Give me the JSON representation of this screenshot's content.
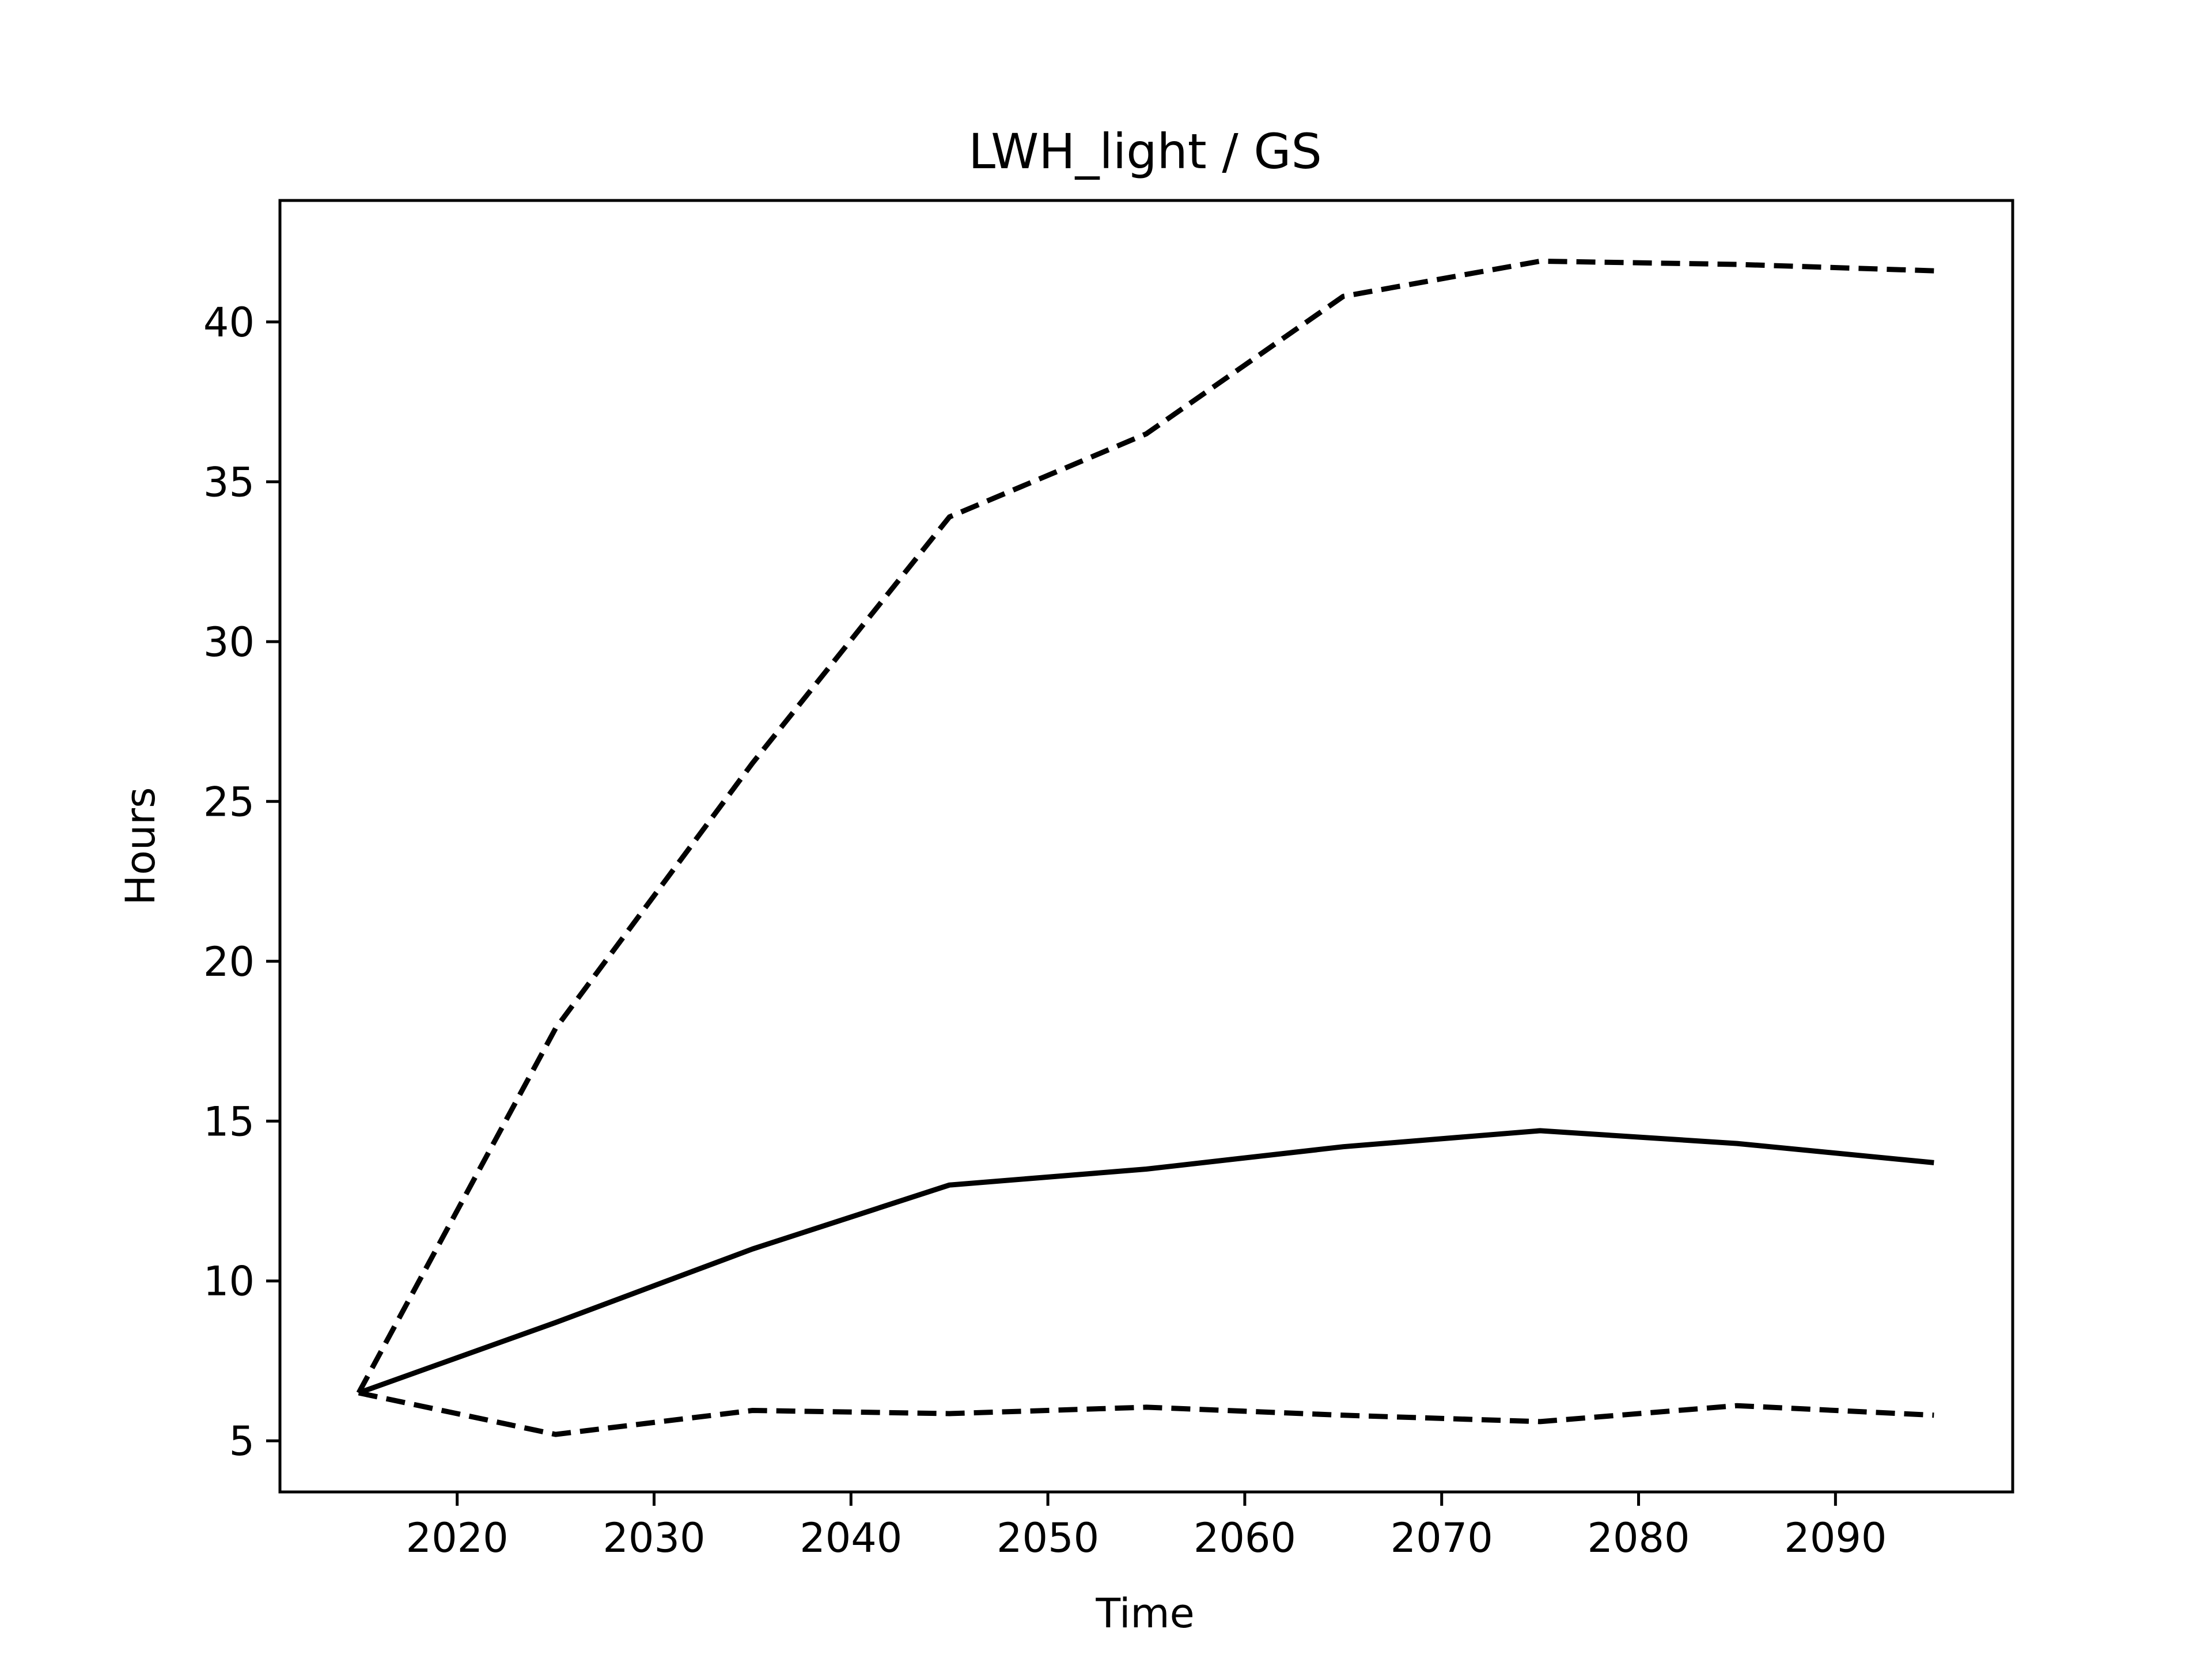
{
  "chart_data": {
    "type": "line",
    "title": "LWH_light / GS",
    "xlabel": "Time",
    "ylabel": "Hours",
    "xlim": [
      2011,
      2099
    ],
    "ylim": [
      3.4,
      43.8
    ],
    "x_ticks": [
      2020,
      2030,
      2040,
      2050,
      2060,
      2070,
      2080,
      2090
    ],
    "y_ticks": [
      5,
      10,
      15,
      20,
      25,
      30,
      35,
      40
    ],
    "grid": false,
    "x": [
      2015,
      2025,
      2035,
      2045,
      2055,
      2065,
      2075,
      2085,
      2095
    ],
    "series": [
      {
        "style": "solid",
        "color": "#000000",
        "values": [
          6.5,
          8.7,
          11.0,
          13.0,
          13.5,
          14.2,
          14.7,
          14.3,
          13.7
        ]
      },
      {
        "style": "dashed",
        "color": "#000000",
        "values": [
          6.5,
          17.9,
          26.2,
          33.9,
          36.5,
          40.8,
          41.9,
          41.8,
          41.6
        ]
      },
      {
        "style": "dashed",
        "color": "#000000",
        "values": [
          6.5,
          5.2,
          5.95,
          5.85,
          6.05,
          5.8,
          5.6,
          6.1,
          5.8
        ]
      }
    ]
  }
}
